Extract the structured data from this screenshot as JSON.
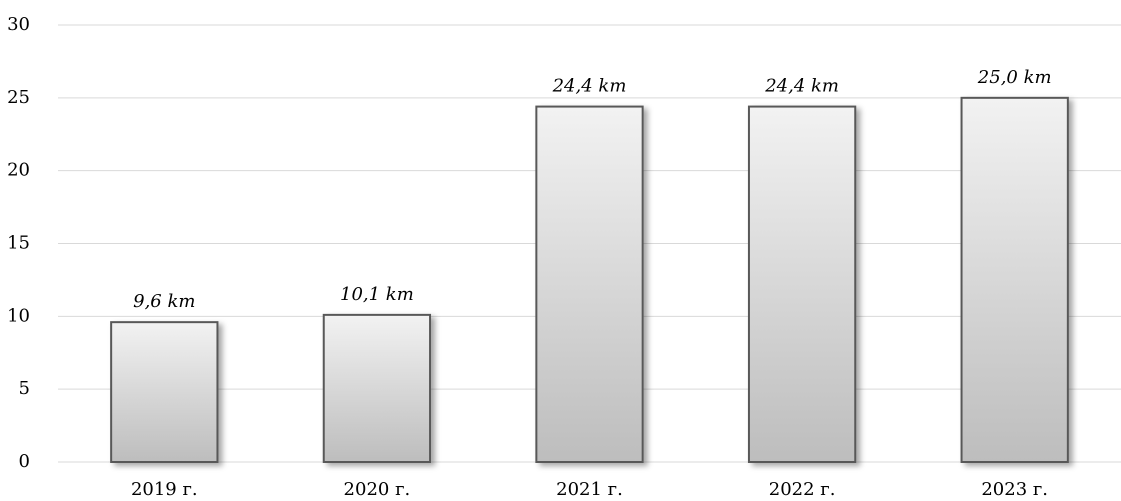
{
  "chart_data": {
    "type": "bar",
    "categories": [
      "2019 г.",
      "2020 г.",
      "2021 г.",
      "2022 г.",
      "2023 г."
    ],
    "values": [
      9.6,
      10.1,
      24.4,
      24.4,
      25.0
    ],
    "value_labels": [
      "9,6 km",
      "10,1 km",
      "24,4 km",
      "24,4 km",
      "25,0 km"
    ],
    "color": "#d9d9d9",
    "ylim": [
      0,
      30
    ],
    "yticks": [
      0,
      5,
      10,
      15,
      20,
      25,
      30
    ],
    "grid": true
  }
}
